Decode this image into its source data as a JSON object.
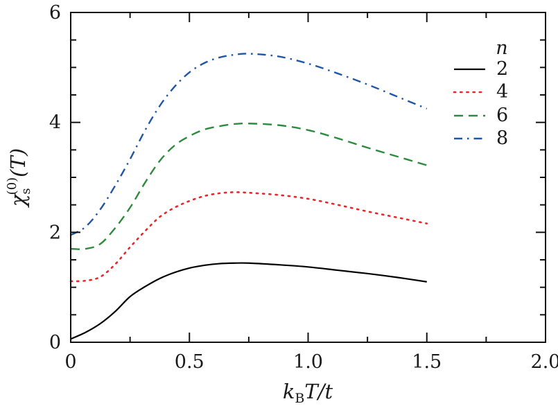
{
  "chart_data": {
    "type": "line",
    "title": "",
    "xlabel": {
      "k": "k",
      "sub": "B",
      "rest": "T/t"
    },
    "ylabel": {
      "chi": "χ",
      "sub": "s",
      "sup": "(0)",
      "rest": "(T)"
    },
    "xlim": [
      0,
      2.0
    ],
    "ylim": [
      0,
      6
    ],
    "x_ticks": [
      0,
      0.5,
      1.0,
      1.5,
      2.0
    ],
    "x_tick_labels": [
      "0",
      "0.5",
      "1.0",
      "1.5",
      "2.0"
    ],
    "x_minor_step": 0.25,
    "y_ticks": [
      0,
      2,
      4,
      6
    ],
    "y_tick_labels": [
      "0",
      "2",
      "4",
      "6"
    ],
    "y_minor_step": 0.5,
    "grid": false,
    "legend": {
      "title": "n",
      "placement": "top-right"
    },
    "x": [
      0,
      0.0625,
      0.125,
      0.1875,
      0.25,
      0.3125,
      0.375,
      0.4375,
      0.5,
      0.5625,
      0.625,
      0.6875,
      0.75,
      0.875,
      1.0,
      1.125,
      1.25,
      1.375,
      1.5
    ],
    "series": [
      {
        "name": "2",
        "color": "#000000",
        "style": "solid",
        "values": [
          0.06,
          0.18,
          0.34,
          0.56,
          0.83,
          1.01,
          1.16,
          1.27,
          1.35,
          1.4,
          1.43,
          1.44,
          1.44,
          1.41,
          1.37,
          1.31,
          1.25,
          1.18,
          1.1
        ]
      },
      {
        "name": "4",
        "color": "#e8262a",
        "style": "dotted",
        "values": [
          1.11,
          1.12,
          1.19,
          1.42,
          1.73,
          2.02,
          2.28,
          2.45,
          2.57,
          2.66,
          2.71,
          2.73,
          2.72,
          2.68,
          2.61,
          2.5,
          2.38,
          2.27,
          2.16
        ]
      },
      {
        "name": "6",
        "color": "#2e8b3e",
        "style": "dashed",
        "values": [
          1.7,
          1.7,
          1.79,
          2.08,
          2.45,
          2.9,
          3.3,
          3.58,
          3.75,
          3.87,
          3.93,
          3.97,
          3.98,
          3.95,
          3.86,
          3.71,
          3.54,
          3.38,
          3.22
        ]
      },
      {
        "name": "8",
        "color": "#2156a5",
        "style": "dashdot",
        "values": [
          1.95,
          2.1,
          2.42,
          2.85,
          3.33,
          3.85,
          4.3,
          4.65,
          4.91,
          5.08,
          5.18,
          5.23,
          5.25,
          5.2,
          5.07,
          4.89,
          4.69,
          4.47,
          4.25
        ]
      }
    ]
  }
}
